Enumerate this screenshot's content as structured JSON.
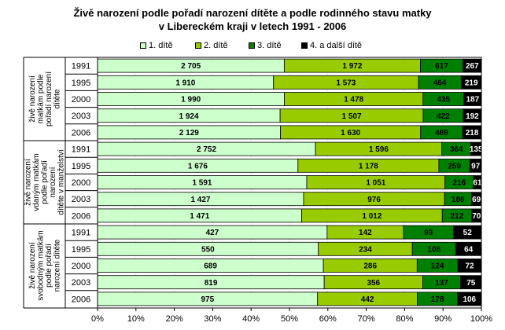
{
  "chart_data": {
    "type": "bar",
    "orientation": "horizontal",
    "stacked": "percent",
    "title_lines": [
      "Živě narození podle pořadí narození dítěte a podle rodinného stavu matky",
      "v Libereckém kraji v letech 1991 - 2006"
    ],
    "legend": [
      "1. dítě",
      "2. dítě",
      "3. dítě",
      "4. a další dítě"
    ],
    "legend_position": "top",
    "colors": [
      "#ccffcc",
      "#99cc00",
      "#008000",
      "#000000"
    ],
    "x_ticks": [
      "0%",
      "10%",
      "20%",
      "30%",
      "40%",
      "50%",
      "60%",
      "70%",
      "80%",
      "90%",
      "100%"
    ],
    "xlim": [
      0,
      100
    ],
    "grid": true,
    "groups": [
      {
        "label_lines": [
          "živě narození",
          "matkám podle",
          "pořadí narození",
          "dítěte"
        ],
        "rows": [
          {
            "year": "1991",
            "values": [
              2705,
              1972,
              617,
              267
            ],
            "labels": [
              "2 705",
              "1 972",
              "617",
              "267"
            ]
          },
          {
            "year": "1995",
            "values": [
              1910,
              1573,
              464,
              219
            ],
            "labels": [
              "1 910",
              "1 573",
              "464",
              "219"
            ]
          },
          {
            "year": "2000",
            "values": [
              1990,
              1478,
              435,
              187
            ],
            "labels": [
              "1 990",
              "1 478",
              "435",
              "187"
            ]
          },
          {
            "year": "2003",
            "values": [
              1924,
              1507,
              422,
              192
            ],
            "labels": [
              "1 924",
              "1 507",
              "422",
              "192"
            ]
          },
          {
            "year": "2006",
            "values": [
              2129,
              1630,
              489,
              218
            ],
            "labels": [
              "2 129",
              "1 630",
              "489",
              "218"
            ]
          }
        ]
      },
      {
        "label_lines": [
          "živě narození",
          "vdaným matkám",
          "podle pořadí",
          "narození",
          "dítěte v manželství"
        ],
        "rows": [
          {
            "year": "1991",
            "values": [
              2752,
              1596,
              364,
              135
            ],
            "labels": [
              "2 752",
              "1 596",
              "364",
              "135"
            ]
          },
          {
            "year": "1995",
            "values": [
              1676,
              1178,
              259,
              97
            ],
            "labels": [
              "1 676",
              "1 178",
              "259",
              "97"
            ]
          },
          {
            "year": "2000",
            "values": [
              1591,
              1051,
              216,
              61
            ],
            "labels": [
              "1 591",
              "1 051",
              "216",
              "61"
            ]
          },
          {
            "year": "2003",
            "values": [
              1427,
              976,
              186,
              69
            ],
            "labels": [
              "1 427",
              "976",
              "186",
              "69"
            ]
          },
          {
            "year": "2006",
            "values": [
              1471,
              1012,
              212,
              70
            ],
            "labels": [
              "1 471",
              "1 012",
              "212",
              "70"
            ]
          }
        ]
      },
      {
        "label_lines": [
          "živě narození",
          "svobodným matkám",
          "podle pořadí",
          "narození dítěte"
        ],
        "rows": [
          {
            "year": "1991",
            "values": [
              427,
              142,
              93,
              52
            ],
            "labels": [
              "427",
              "142",
              "93",
              "52"
            ]
          },
          {
            "year": "1995",
            "values": [
              550,
              234,
              108,
              64
            ],
            "labels": [
              "550",
              "234",
              "108",
              "64"
            ]
          },
          {
            "year": "2000",
            "values": [
              689,
              286,
              124,
              72
            ],
            "labels": [
              "689",
              "286",
              "124",
              "72"
            ]
          },
          {
            "year": "2003",
            "values": [
              819,
              356,
              137,
              75
            ],
            "labels": [
              "819",
              "356",
              "137",
              "75"
            ]
          },
          {
            "year": "2006",
            "values": [
              975,
              442,
              178,
              106
            ],
            "labels": [
              "975",
              "442",
              "178",
              "106"
            ]
          }
        ]
      }
    ]
  }
}
